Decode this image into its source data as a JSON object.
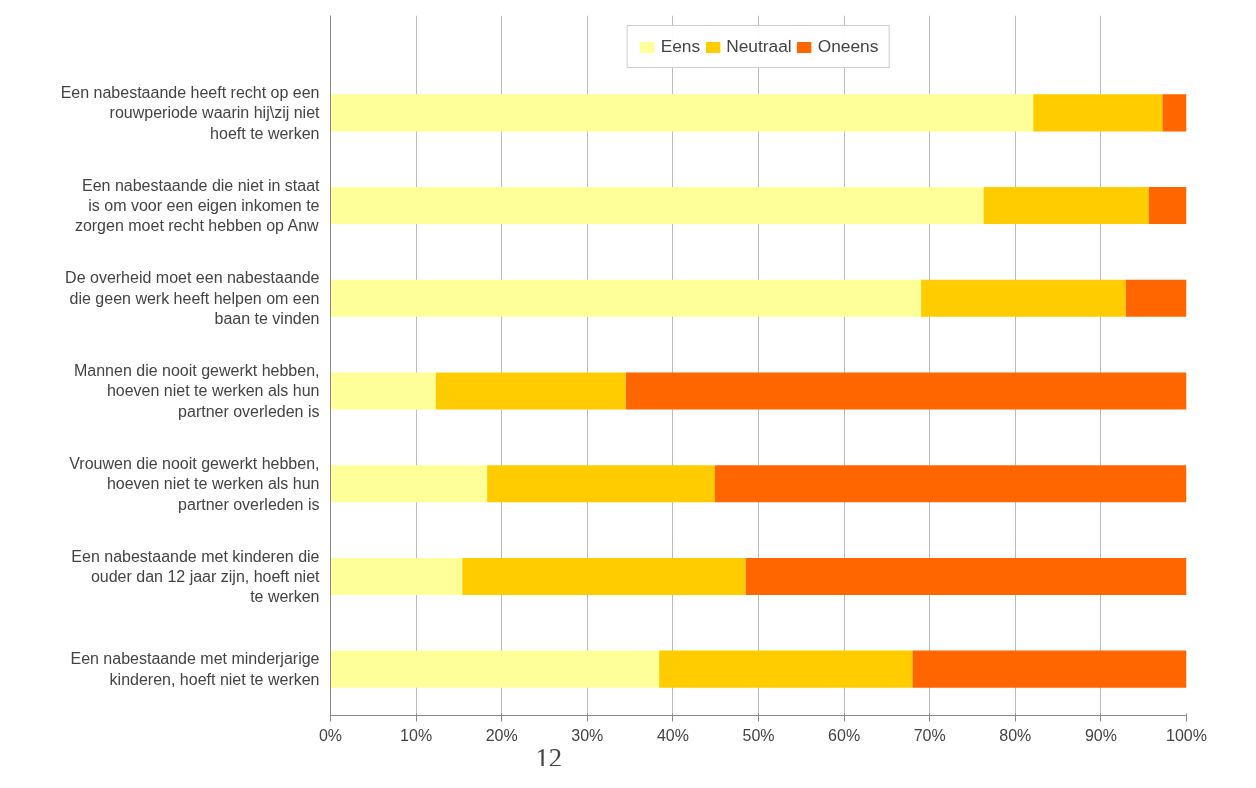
{
  "chart_data": {
    "type": "bar",
    "orientation": "horizontal",
    "stacked": true,
    "categories": [
      "Een nabestaande heeft recht op een rouwperiode waarin hij\\zij niet hoeft te werken",
      "Een nabestaande die niet in staat is om voor een eigen inkomen te zorgen moet recht hebben op Anw",
      "De overheid moet een nabestaande die geen werk heeft helpen om een baan te vinden",
      "Mannen die nooit gewerkt hebben, hoeven niet te werken als hun partner overleden is",
      "Vrouwen die nooit gewerkt hebben, hoeven niet te werken als hun partner overleden is",
      "Een nabestaande met kinderen die ouder dan 12 jaar zijn, hoeft niet te werken",
      "Een nabestaande met minderjarige kinderen, hoeft niet te werken"
    ],
    "series": [
      {
        "name": "Eens",
        "color": "#ffff99",
        "values": [
          82.1,
          76.3,
          69.0,
          12.3,
          18.3,
          15.4,
          38.4
        ]
      },
      {
        "name": "Neutraal",
        "color": "#ffcc00",
        "values": [
          15.1,
          19.3,
          23.9,
          22.2,
          26.6,
          33.1,
          29.6
        ]
      },
      {
        "name": "Oneens",
        "color": "#ff6600",
        "values": [
          2.8,
          4.4,
          7.1,
          65.5,
          55.1,
          51.5,
          32.0
        ]
      }
    ],
    "xlim": [
      0,
      100
    ],
    "xticks": [
      {
        "value": 0,
        "label": "0%"
      },
      {
        "value": 10,
        "label": "10%"
      },
      {
        "value": 20,
        "label": "20%"
      },
      {
        "value": 30,
        "label": "30%"
      },
      {
        "value": 40,
        "label": "40%"
      },
      {
        "value": 50,
        "label": "50%"
      },
      {
        "value": 60,
        "label": "60%"
      },
      {
        "value": 70,
        "label": "70%"
      },
      {
        "value": 80,
        "label": "80%"
      },
      {
        "value": 90,
        "label": "90%"
      },
      {
        "value": 100,
        "label": "100%"
      }
    ],
    "grid": "x",
    "legend": "top",
    "annotations": [
      "12"
    ]
  }
}
